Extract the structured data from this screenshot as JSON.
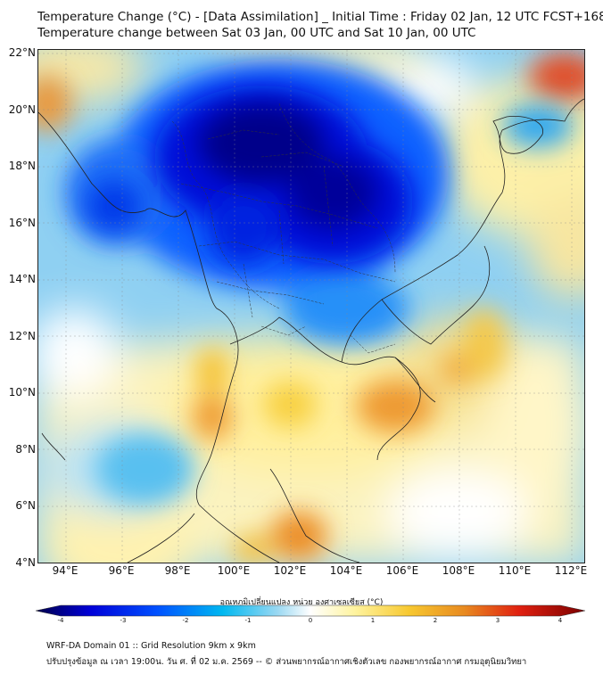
{
  "title": {
    "line1": "Temperature Change (°C) - [Data Assimilation] _ Initial Time : Friday 02 Jan, 12 UTC FCST+168",
    "line2": "Temperature change between Sat 03 Jan, 00 UTC and Sat 10 Jan, 00 UTC"
  },
  "axes": {
    "lat_labels": [
      "22°N",
      "20°N",
      "18°N",
      "16°N",
      "14°N",
      "12°N",
      "10°N",
      "8°N",
      "6°N",
      "4°N"
    ],
    "lon_labels": [
      "94°E",
      "96°E",
      "98°E",
      "100°E",
      "102°E",
      "104°E",
      "106°E",
      "108°E",
      "110°E",
      "112°E"
    ]
  },
  "map_extent": {
    "lon_min": 93.0,
    "lon_max": 112.5,
    "lat_min": 4.0,
    "lat_max": 22.2
  },
  "colorbar": {
    "title": "อุณหภูมิเปลี่ยนแปลง หน่วย องศาเซลเซียส (°C)",
    "ticks": [
      "-4",
      "-3",
      "-2",
      "-1",
      "0",
      "1",
      "2",
      "3",
      "4"
    ],
    "range": [
      -4,
      4
    ],
    "colors": [
      "#00004a",
      "#0000d8",
      "#0050ff",
      "#00b8f0",
      "#9ad8f2",
      "#ffffff",
      "#fff4a0",
      "#f7c830",
      "#e88a20",
      "#e02010",
      "#7a0000"
    ]
  },
  "footer": {
    "line1": "WRF-DA Domain 01 :: Grid Resolution 9km x 9km",
    "line2": "ปรับปรุงข้อมูล ณ เวลา 19:00น. วัน ศ. ที่ 02 ม.ค. 2569 -- © ส่วนพยากรณ์อากาศเชิงตัวเลข กองพยากรณ์อากาศ กรมอุตุนิยมวิทยา"
  }
}
